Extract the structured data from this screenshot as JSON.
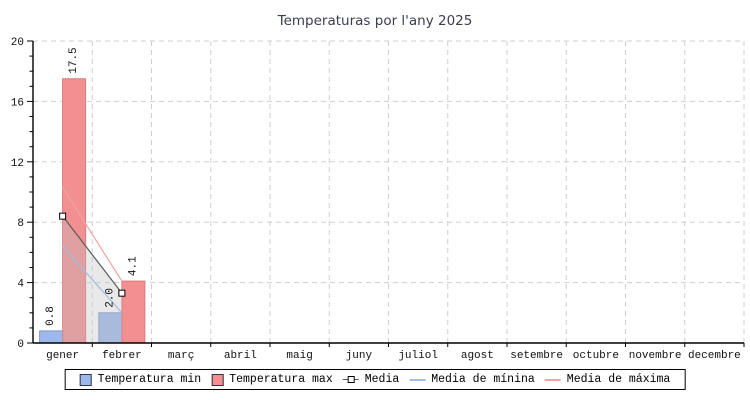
{
  "title": "Temperaturas por l'any 2025",
  "chart_data": {
    "type": "bar",
    "title": "Temperaturas por l'any 2025",
    "xlabel": "",
    "ylabel": "",
    "ylim": [
      0,
      20
    ],
    "y_major_step": 4,
    "y_minor_step": 1,
    "grid": "dashed",
    "legend_position": "bottom",
    "categories": [
      "gener",
      "febrer",
      "març",
      "abril",
      "maig",
      "juny",
      "juliol",
      "agost",
      "setembre",
      "octubre",
      "novembre",
      "decembre"
    ],
    "bar_series": [
      {
        "name": "Temperatura min",
        "color": "#9db8ec",
        "border": "#8094c8",
        "values": [
          0.8,
          2.0,
          null,
          null,
          null,
          null,
          null,
          null,
          null,
          null,
          null,
          null
        ]
      },
      {
        "name": "Temperatura max",
        "color": "#f28f91",
        "border": "#dd7a7e",
        "values": [
          17.5,
          4.1,
          null,
          null,
          null,
          null,
          null,
          null,
          null,
          null,
          null,
          null
        ]
      }
    ],
    "line_series": [
      {
        "name": "Media",
        "color": "#5a5a5a",
        "marker": "square",
        "area_fill": "#bfbfbf",
        "values": [
          8.4,
          3.3,
          null,
          null,
          null,
          null,
          null,
          null,
          null,
          null,
          null,
          null
        ]
      },
      {
        "name": "Media de mínina",
        "color": "#9fbde9",
        "marker": "none",
        "values": [
          6.4,
          2.0,
          null,
          null,
          null,
          null,
          null,
          null,
          null,
          null,
          null,
          null
        ]
      },
      {
        "name": "Media de máxima",
        "color": "#f2a3a3",
        "marker": "none",
        "values": [
          10.3,
          4.1,
          null,
          null,
          null,
          null,
          null,
          null,
          null,
          null,
          null,
          null
        ]
      }
    ],
    "bar_value_labels": {
      "rotated": true,
      "format": "one-decimal"
    }
  },
  "legend": {
    "items": [
      {
        "label": "Temperatura min",
        "swatch": "rect",
        "color": "#9db8ec",
        "border": "#33334d"
      },
      {
        "label": "Temperatura max",
        "swatch": "rect",
        "color": "#f28f91",
        "border": "#33334d"
      },
      {
        "label": "Media",
        "swatch": "marker",
        "color": "#5a5a5a"
      },
      {
        "label": "Media de mínina",
        "swatch": "line",
        "color": "#9fbde9"
      },
      {
        "label": "Media de máxima",
        "swatch": "line",
        "color": "#f2a3a3"
      }
    ]
  },
  "colors": {
    "title_text": "#3c3c52",
    "axis": "#000000",
    "grid": "#cfcfcf",
    "background": "#ffffff",
    "area_under_media": "#bfbfbf"
  }
}
